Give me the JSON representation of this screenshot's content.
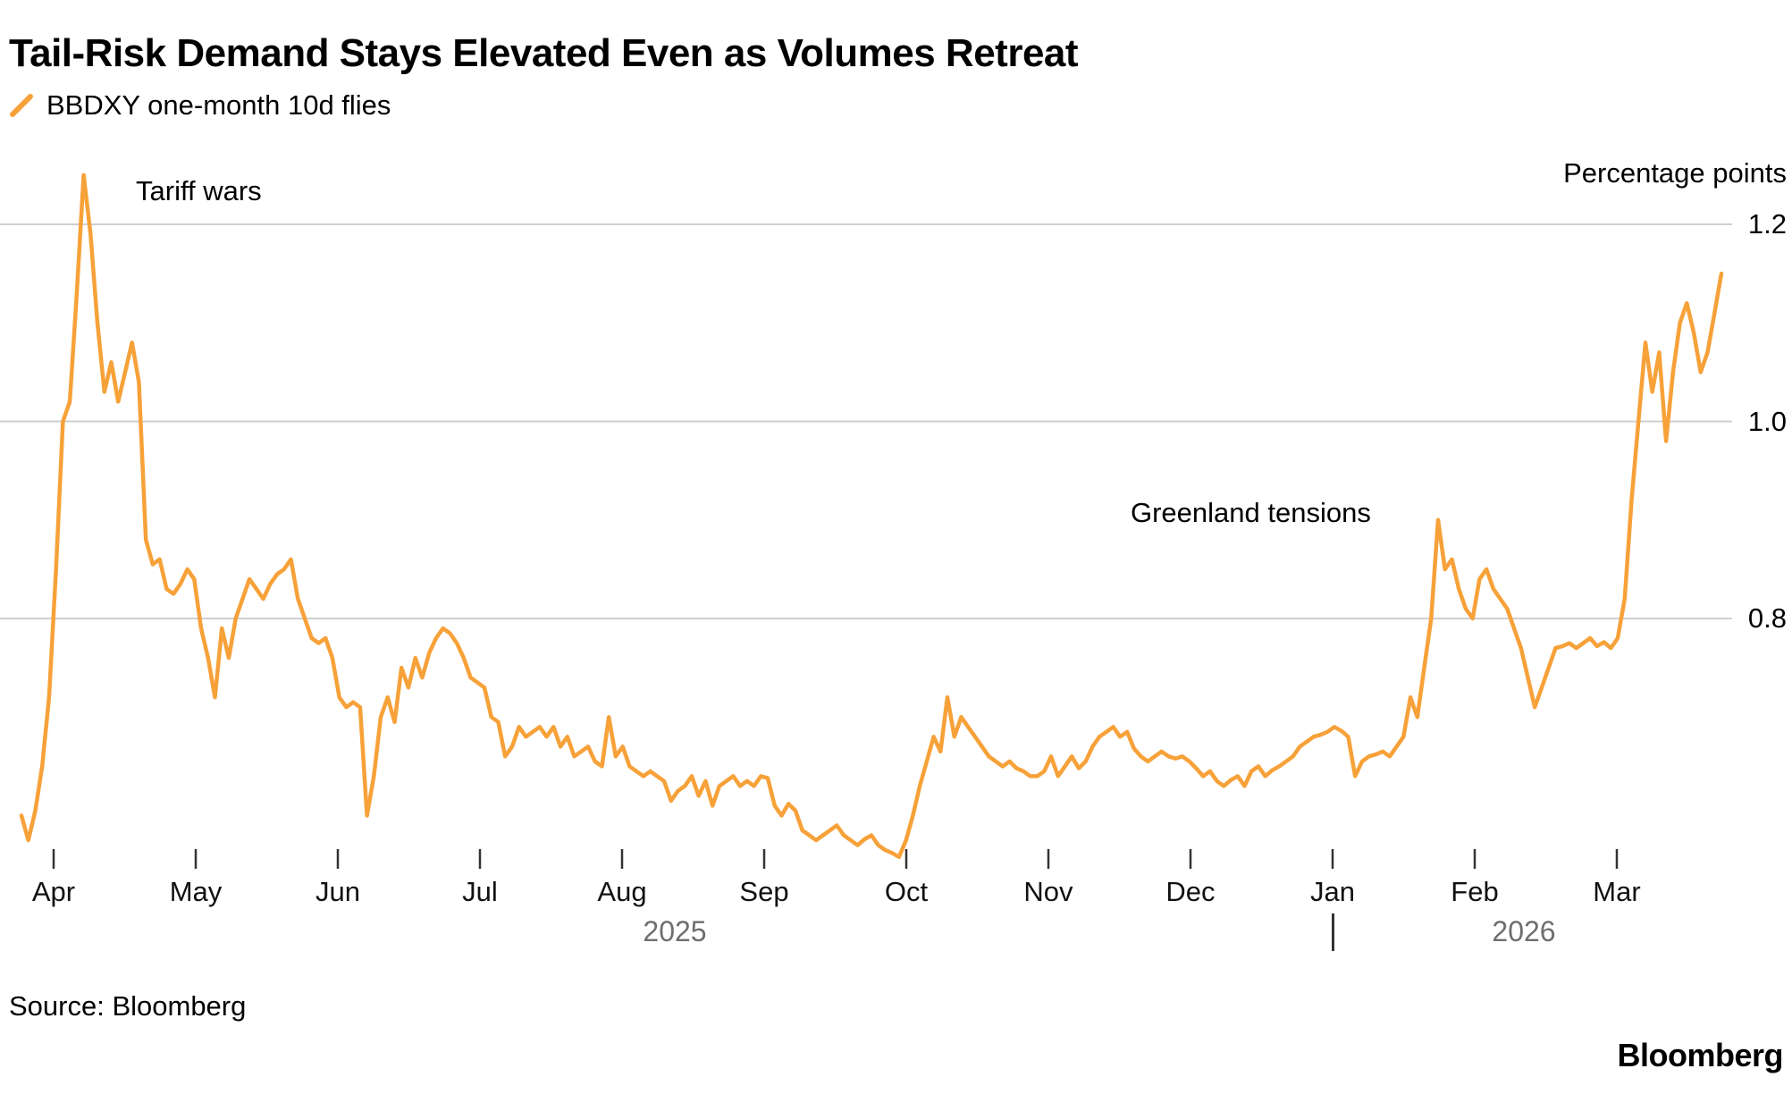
{
  "title": "Tail-Risk Demand Stays Elevated Even as Volumes Retreat",
  "legend": {
    "label": "BBDXY one-month 10d flies"
  },
  "annotations": {
    "tariff": "Tariff wars",
    "greenland": "Greenland tensions"
  },
  "axis": {
    "y_title": "Percentage points",
    "y_ticks": [
      {
        "label": "1.2",
        "value": 1.2
      },
      {
        "label": "1.0",
        "value": 1.0
      },
      {
        "label": "0.8",
        "value": 0.8
      }
    ],
    "x_ticks": [
      "Apr",
      "May",
      "Jun",
      "Jul",
      "Aug",
      "Sep",
      "Oct",
      "Nov",
      "Dec",
      "Jan",
      "Feb",
      "Mar"
    ],
    "years": [
      "2025",
      "2026"
    ]
  },
  "source": "Source: Bloomberg",
  "logo": "Bloomberg",
  "colors": {
    "line": "#F7A139",
    "grid": "#CFCFCF",
    "tick": "#333333",
    "text": "#000000",
    "muted": "#6E6E6E"
  },
  "chart_data": {
    "type": "line",
    "title": "Tail-Risk Demand Stays Elevated Even as Volumes Retreat",
    "ylabel": "Percentage points",
    "x_month_ticks": [
      "Apr",
      "May",
      "Jun",
      "Jul",
      "Aug",
      "Sep",
      "Oct",
      "Nov",
      "Dec",
      "Jan",
      "Feb",
      "Mar"
    ],
    "x_span": "Apr 2025 - mid Mar 2026, daily",
    "points_per_month": 21,
    "ylim": [
      0.55,
      1.28
    ],
    "y_gridlines": [
      1.2,
      1.0,
      0.8
    ],
    "grid": true,
    "legend_position": "top-left",
    "annotations": [
      {
        "text": "Tariff wars",
        "near_value": 1.25,
        "near_x": "early Apr 2025"
      },
      {
        "text": "Greenland tensions",
        "near_value": 0.9,
        "near_x": "late Jan 2026"
      }
    ],
    "series": [
      {
        "name": "BBDXY one-month 10d flies",
        "color": "#F7A139",
        "values": [
          0.6,
          0.575,
          0.605,
          0.65,
          0.72,
          0.85,
          1.0,
          1.02,
          1.13,
          1.25,
          1.19,
          1.1,
          1.03,
          1.06,
          1.02,
          1.05,
          1.08,
          1.04,
          0.88,
          0.855,
          0.86,
          0.83,
          0.825,
          0.835,
          0.85,
          0.84,
          0.79,
          0.76,
          0.72,
          0.79,
          0.76,
          0.8,
          0.82,
          0.84,
          0.83,
          0.82,
          0.835,
          0.845,
          0.85,
          0.86,
          0.82,
          0.8,
          0.78,
          0.775,
          0.78,
          0.76,
          0.72,
          0.71,
          0.715,
          0.71,
          0.6,
          0.64,
          0.7,
          0.72,
          0.695,
          0.75,
          0.73,
          0.76,
          0.74,
          0.765,
          0.78,
          0.79,
          0.785,
          0.775,
          0.76,
          0.74,
          0.735,
          0.73,
          0.7,
          0.695,
          0.66,
          0.67,
          0.69,
          0.68,
          0.685,
          0.69,
          0.68,
          0.69,
          0.67,
          0.68,
          0.66,
          0.665,
          0.67,
          0.655,
          0.65,
          0.7,
          0.66,
          0.67,
          0.65,
          0.645,
          0.64,
          0.645,
          0.64,
          0.635,
          0.615,
          0.625,
          0.63,
          0.64,
          0.62,
          0.635,
          0.61,
          0.63,
          0.635,
          0.64,
          0.63,
          0.635,
          0.63,
          0.64,
          0.638,
          0.61,
          0.6,
          0.612,
          0.605,
          0.585,
          0.58,
          0.575,
          0.58,
          0.585,
          0.59,
          0.58,
          0.575,
          0.57,
          0.576,
          0.58,
          0.57,
          0.565,
          0.562,
          0.558,
          0.575,
          0.6,
          0.63,
          0.655,
          0.68,
          0.665,
          0.72,
          0.68,
          0.7,
          0.69,
          0.68,
          0.67,
          0.66,
          0.655,
          0.65,
          0.655,
          0.648,
          0.645,
          0.64,
          0.64,
          0.645,
          0.66,
          0.64,
          0.65,
          0.66,
          0.648,
          0.655,
          0.67,
          0.68,
          0.685,
          0.69,
          0.68,
          0.685,
          0.668,
          0.66,
          0.655,
          0.66,
          0.665,
          0.66,
          0.658,
          0.66,
          0.655,
          0.648,
          0.64,
          0.645,
          0.635,
          0.63,
          0.636,
          0.64,
          0.63,
          0.645,
          0.65,
          0.64,
          0.646,
          0.65,
          0.655,
          0.66,
          0.67,
          0.675,
          0.68,
          0.682,
          0.685,
          0.69,
          0.686,
          0.68,
          0.64,
          0.655,
          0.66,
          0.662,
          0.665,
          0.66,
          0.67,
          0.68,
          0.72,
          0.7,
          0.75,
          0.8,
          0.9,
          0.85,
          0.86,
          0.83,
          0.81,
          0.8,
          0.84,
          0.85,
          0.83,
          0.82,
          0.81,
          0.79,
          0.77,
          0.74,
          0.71,
          0.73,
          0.75,
          0.77,
          0.772,
          0.775,
          0.77,
          0.775,
          0.78,
          0.772,
          0.776,
          0.77,
          0.78,
          0.82,
          0.92,
          1.0,
          1.08,
          1.03,
          1.07,
          0.98,
          1.05,
          1.1,
          1.12,
          1.09,
          1.05,
          1.07,
          1.11,
          1.15
        ]
      }
    ]
  }
}
